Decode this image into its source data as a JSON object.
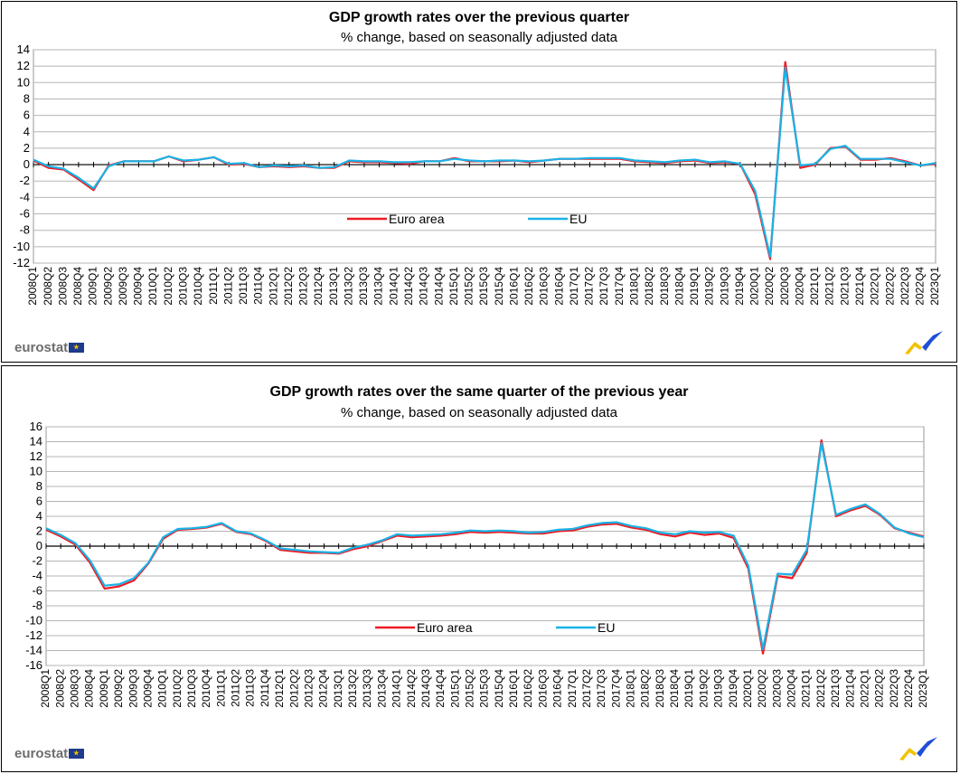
{
  "brand": {
    "name": "eurostat",
    "flag_icon": "eu-flag-icon",
    "corner_mark": "eurostat-ribbon-logo",
    "colors": {
      "yellow": "#f2c200",
      "blue": "#1f4fd6"
    }
  },
  "chart_data": [
    {
      "type": "line",
      "title": "GDP growth rates over the previous quarter",
      "subtitle": "% change, based on seasonally adjusted data",
      "ylim": [
        -12,
        14
      ],
      "yticks": [
        -12,
        -10,
        -8,
        -6,
        -4,
        -2,
        0,
        2,
        4,
        6,
        8,
        10,
        12,
        14
      ],
      "grid": true,
      "legend": "center",
      "categories": [
        "2008Q1",
        "2008Q2",
        "2008Q3",
        "2008Q4",
        "2009Q1",
        "2009Q2",
        "2009Q3",
        "2009Q4",
        "2010Q1",
        "2010Q2",
        "2010Q3",
        "2010Q4",
        "2011Q1",
        "2011Q2",
        "2011Q3",
        "2011Q4",
        "2012Q1",
        "2012Q2",
        "2012Q3",
        "2012Q4",
        "2013Q1",
        "2013Q2",
        "2013Q3",
        "2013Q4",
        "2014Q1",
        "2014Q2",
        "2014Q3",
        "2014Q4",
        "2015Q1",
        "2015Q2",
        "2015Q3",
        "2015Q4",
        "2016Q1",
        "2016Q2",
        "2016Q3",
        "2016Q4",
        "2017Q1",
        "2017Q2",
        "2017Q3",
        "2017Q4",
        "2018Q1",
        "2018Q2",
        "2018Q3",
        "2018Q4",
        "2019Q1",
        "2019Q2",
        "2019Q3",
        "2019Q4",
        "2020Q1",
        "2020Q2",
        "2020Q3",
        "2020Q4",
        "2021Q1",
        "2021Q2",
        "2021Q3",
        "2021Q4",
        "2022Q1",
        "2022Q2",
        "2022Q3",
        "2022Q4",
        "2023Q1"
      ],
      "series": [
        {
          "name": "Euro area",
          "color": "#ee1c25",
          "values": [
            0.5,
            -0.4,
            -0.6,
            -1.8,
            -3.1,
            -0.1,
            0.4,
            0.4,
            0.4,
            1.0,
            0.4,
            0.6,
            0.9,
            0.0,
            0.1,
            -0.3,
            -0.2,
            -0.3,
            -0.2,
            -0.4,
            -0.4,
            0.4,
            0.3,
            0.3,
            0.2,
            0.1,
            0.4,
            0.4,
            0.8,
            0.4,
            0.4,
            0.4,
            0.5,
            0.3,
            0.5,
            0.7,
            0.7,
            0.7,
            0.7,
            0.7,
            0.4,
            0.3,
            0.2,
            0.4,
            0.5,
            0.2,
            0.3,
            0.1,
            -3.6,
            -11.5,
            12.5,
            -0.4,
            0.0,
            2.0,
            2.2,
            0.6,
            0.6,
            0.8,
            0.4,
            -0.1,
            0.1
          ]
        },
        {
          "name": "EU",
          "color": "#1ab2e6",
          "values": [
            0.6,
            -0.2,
            -0.5,
            -1.6,
            -2.9,
            -0.2,
            0.4,
            0.4,
            0.4,
            1.0,
            0.5,
            0.6,
            0.9,
            0.1,
            0.2,
            -0.3,
            -0.1,
            -0.2,
            -0.1,
            -0.4,
            -0.3,
            0.5,
            0.4,
            0.4,
            0.3,
            0.3,
            0.4,
            0.4,
            0.7,
            0.5,
            0.4,
            0.5,
            0.5,
            0.4,
            0.5,
            0.7,
            0.7,
            0.8,
            0.8,
            0.8,
            0.5,
            0.4,
            0.3,
            0.5,
            0.6,
            0.3,
            0.4,
            0.1,
            -3.2,
            -11.2,
            11.8,
            -0.1,
            0.1,
            1.9,
            2.3,
            0.7,
            0.7,
            0.7,
            0.3,
            -0.1,
            0.2
          ]
        }
      ]
    },
    {
      "type": "line",
      "title": "GDP growth rates over the same quarter of the previous year",
      "subtitle": "% change, based on seasonally adjusted data",
      "ylim": [
        -16,
        16
      ],
      "yticks": [
        -16,
        -14,
        -12,
        -10,
        -8,
        -6,
        -4,
        -2,
        0,
        2,
        4,
        6,
        8,
        10,
        12,
        14,
        16
      ],
      "grid": true,
      "legend": "center",
      "categories": [
        "2008Q1",
        "2008Q2",
        "2008Q3",
        "2008Q4",
        "2009Q1",
        "2009Q2",
        "2009Q3",
        "2009Q4",
        "2010Q1",
        "2010Q2",
        "2010Q3",
        "2010Q4",
        "2011Q1",
        "2011Q2",
        "2011Q3",
        "2011Q4",
        "2012Q1",
        "2012Q2",
        "2012Q3",
        "2012Q4",
        "2013Q1",
        "2013Q2",
        "2013Q3",
        "2013Q4",
        "2014Q1",
        "2014Q2",
        "2014Q3",
        "2014Q4",
        "2015Q1",
        "2015Q2",
        "2015Q3",
        "2015Q4",
        "2016Q1",
        "2016Q2",
        "2016Q3",
        "2016Q4",
        "2017Q1",
        "2017Q2",
        "2017Q3",
        "2017Q4",
        "2018Q1",
        "2018Q2",
        "2018Q3",
        "2018Q4",
        "2019Q1",
        "2019Q2",
        "2019Q3",
        "2019Q4",
        "2020Q1",
        "2020Q2",
        "2020Q3",
        "2020Q4",
        "2021Q1",
        "2021Q2",
        "2021Q3",
        "2021Q4",
        "2022Q1",
        "2022Q2",
        "2022Q3",
        "2022Q4",
        "2023Q1"
      ],
      "series": [
        {
          "name": "Euro area",
          "color": "#ee1c25",
          "values": [
            2.2,
            1.3,
            0.2,
            -2.2,
            -5.7,
            -5.4,
            -4.6,
            -2.3,
            1.0,
            2.2,
            2.3,
            2.5,
            3.0,
            1.9,
            1.6,
            0.7,
            -0.5,
            -0.7,
            -0.9,
            -0.9,
            -1.0,
            -0.4,
            0.0,
            0.7,
            1.4,
            1.2,
            1.3,
            1.4,
            1.6,
            1.9,
            1.8,
            1.9,
            1.8,
            1.7,
            1.7,
            2.0,
            2.1,
            2.6,
            2.9,
            3.0,
            2.5,
            2.2,
            1.6,
            1.3,
            1.8,
            1.5,
            1.7,
            1.1,
            -3.0,
            -14.4,
            -4.0,
            -4.3,
            -0.9,
            14.2,
            4.0,
            4.8,
            5.4,
            4.2,
            2.4,
            1.8,
            1.3
          ]
        },
        {
          "name": "EU",
          "color": "#1ab2e6",
          "values": [
            2.4,
            1.5,
            0.4,
            -1.9,
            -5.3,
            -5.1,
            -4.3,
            -2.2,
            1.2,
            2.3,
            2.4,
            2.6,
            3.1,
            2.0,
            1.7,
            0.8,
            -0.3,
            -0.5,
            -0.7,
            -0.8,
            -0.9,
            -0.2,
            0.2,
            0.8,
            1.6,
            1.4,
            1.5,
            1.6,
            1.8,
            2.1,
            2.0,
            2.1,
            2.0,
            1.8,
            1.9,
            2.2,
            2.3,
            2.8,
            3.1,
            3.2,
            2.7,
            2.4,
            1.8,
            1.6,
            2.0,
            1.8,
            1.9,
            1.4,
            -2.6,
            -13.8,
            -3.7,
            -3.8,
            -0.5,
            13.8,
            4.2,
            5.0,
            5.6,
            4.3,
            2.5,
            1.7,
            1.2
          ]
        }
      ]
    }
  ]
}
